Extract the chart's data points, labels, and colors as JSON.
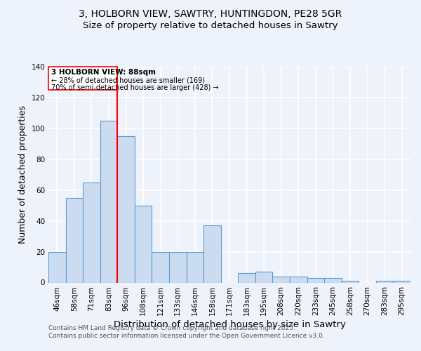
{
  "title_line1": "3, HOLBORN VIEW, SAWTRY, HUNTINGDON, PE28 5GR",
  "title_line2": "Size of property relative to detached houses in Sawtry",
  "categories": [
    "46sqm",
    "58sqm",
    "71sqm",
    "83sqm",
    "96sqm",
    "108sqm",
    "121sqm",
    "133sqm",
    "146sqm",
    "158sqm",
    "171sqm",
    "183sqm",
    "195sqm",
    "208sqm",
    "220sqm",
    "233sqm",
    "245sqm",
    "258sqm",
    "270sqm",
    "283sqm",
    "295sqm"
  ],
  "values": [
    20,
    55,
    65,
    105,
    95,
    50,
    20,
    20,
    20,
    37,
    0,
    6,
    7,
    4,
    4,
    3,
    3,
    1,
    0,
    1,
    1
  ],
  "bar_color": "#ccdcf0",
  "bar_edge_color": "#5b9bd5",
  "annotation_box_label": "3 HOLBORN VIEW: 88sqm",
  "annotation_line1": "← 28% of detached houses are smaller (169)",
  "annotation_line2": "70% of semi-detached houses are larger (428) →",
  "vline_position": 3,
  "vline_color": "red",
  "xlabel": "Distribution of detached houses by size in Sawtry",
  "ylabel": "Number of detached properties",
  "ylim": [
    0,
    140
  ],
  "yticks": [
    0,
    20,
    40,
    60,
    80,
    100,
    120,
    140
  ],
  "footer_line1": "Contains HM Land Registry data © Crown copyright and database right 2025.",
  "footer_line2": "Contains public sector information licensed under the Open Government Licence v3.0.",
  "bg_color": "#eef2fa",
  "plot_bg_color": "#eef2fa",
  "grid_color": "#ffffff",
  "title_fontsize": 10,
  "subtitle_fontsize": 9.5,
  "axis_label_fontsize": 9,
  "tick_fontsize": 7.5,
  "footer_fontsize": 6.5
}
